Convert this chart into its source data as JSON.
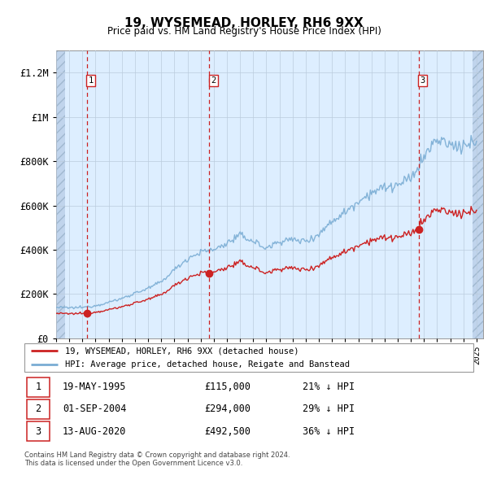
{
  "title": "19, WYSEMEAD, HORLEY, RH6 9XX",
  "subtitle": "Price paid vs. HM Land Registry's House Price Index (HPI)",
  "sale_prices": [
    115000,
    294000,
    492500
  ],
  "sale_labels": [
    "1",
    "2",
    "3"
  ],
  "sale_info": [
    {
      "label": "1",
      "date": "19-MAY-1995",
      "price": "£115,000",
      "hpi": "21% ↓ HPI"
    },
    {
      "label": "2",
      "date": "01-SEP-2004",
      "price": "£294,000",
      "hpi": "29% ↓ HPI"
    },
    {
      "label": "3",
      "date": "13-AUG-2020",
      "price": "£492,500",
      "hpi": "36% ↓ HPI"
    }
  ],
  "ylim": [
    0,
    1300000
  ],
  "yticks": [
    0,
    200000,
    400000,
    600000,
    800000,
    1000000,
    1200000
  ],
  "ytick_labels": [
    "£0",
    "£200K",
    "£400K",
    "£600K",
    "£800K",
    "£1M",
    "£1.2M"
  ],
  "hpi_color": "#7aadd4",
  "price_color": "#cc2222",
  "dashed_line_color": "#cc2222",
  "chart_bg": "#ddeeff",
  "hatch_color": "#c0d4ec",
  "grid_color": "#bbccdd",
  "legend_label_red": "19, WYSEMEAD, HORLEY, RH6 9XX (detached house)",
  "legend_label_blue": "HPI: Average price, detached house, Reigate and Banstead",
  "footer": "Contains HM Land Registry data © Crown copyright and database right 2024.\nThis data is licensed under the Open Government Licence v3.0.",
  "xlim_start": 1993.0,
  "xlim_end": 2025.5,
  "hatch_left_end": 1993.7,
  "hatch_right_start": 2024.7,
  "hpi_anchors": {
    "1993": 140000,
    "1994": 138000,
    "1995": 140000,
    "1996": 148000,
    "1997": 163000,
    "1998": 180000,
    "1999": 205000,
    "2000": 225000,
    "2001": 255000,
    "2002": 310000,
    "2003": 360000,
    "2004": 390000,
    "2005": 400000,
    "2006": 430000,
    "2007": 465000,
    "2008": 440000,
    "2009": 405000,
    "2010": 440000,
    "2011": 445000,
    "2012": 440000,
    "2013": 470000,
    "2014": 530000,
    "2015": 570000,
    "2016": 620000,
    "2017": 660000,
    "2018": 680000,
    "2019": 690000,
    "2020": 720000,
    "2021": 820000,
    "2022": 900000,
    "2023": 870000,
    "2024": 870000,
    "2025": 890000
  }
}
